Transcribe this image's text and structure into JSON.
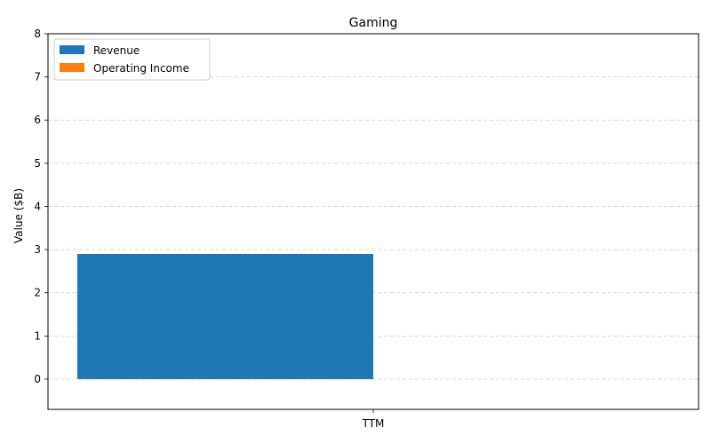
{
  "chart_data": {
    "type": "bar",
    "title": "Gaming",
    "xlabel": "",
    "ylabel": "Value ($B)",
    "categories": [
      "TTM"
    ],
    "series": [
      {
        "name": "Revenue",
        "values": [
          2.9
        ],
        "color": "#1f77b4"
      },
      {
        "name": "Operating Income",
        "values": [
          0
        ],
        "color": "#ff7f0e"
      }
    ],
    "ylim": [
      -0.7,
      8
    ],
    "yticks": [
      0,
      1,
      2,
      3,
      4,
      5,
      6,
      7,
      8
    ],
    "grid": "horizontal dashed",
    "legend_position": "top-left"
  }
}
